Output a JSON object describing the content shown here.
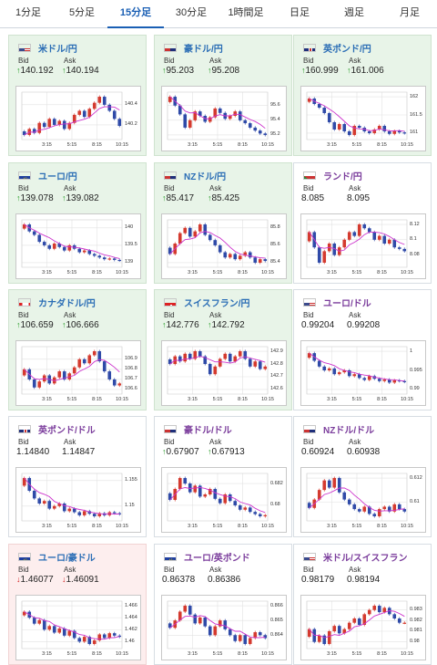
{
  "tabs": [
    {
      "label": "1分足",
      "active": false
    },
    {
      "label": "5分足",
      "active": false
    },
    {
      "label": "15分足",
      "active": true
    },
    {
      "label": "30分足",
      "active": false
    },
    {
      "label": "1時間足",
      "active": false
    },
    {
      "label": "日足",
      "active": false
    },
    {
      "label": "週足",
      "active": false
    },
    {
      "label": "月足",
      "active": false
    }
  ],
  "bid_label": "Bid",
  "ask_label": "Ask",
  "colors": {
    "up": "#239a23",
    "down": "#d32020",
    "ma": "#cc33cc",
    "tab_active": "#1a5fb4"
  },
  "cards": [
    {
      "pair": "米ドル/円",
      "flag": "us",
      "bg": "green",
      "dir": "up",
      "bid": "140.192",
      "ask": "140.194",
      "ticks": [
        "140.4",
        "140.2"
      ],
      "xlabels": [
        "3:15",
        "5:15",
        "8:15",
        "10:15"
      ],
      "close": [
        140.1,
        140.16,
        140.12,
        140.22,
        140.18,
        140.26,
        140.2,
        140.24,
        140.16,
        140.22,
        140.3,
        140.34,
        140.28,
        140.36,
        140.42,
        140.48,
        140.4,
        140.34,
        140.26,
        140.19
      ]
    },
    {
      "pair": "豪ドル/円",
      "flag": "au",
      "bg": "green",
      "dir": "up",
      "bid": "95.203",
      "ask": "95.208",
      "ticks": [
        "95.6",
        "95.4",
        "95.2"
      ],
      "xlabels": [
        "3:15",
        "5:15",
        "8:15",
        "10:15"
      ],
      "close": [
        95.72,
        95.6,
        95.48,
        95.3,
        95.4,
        95.52,
        95.46,
        95.38,
        95.44,
        95.56,
        95.5,
        95.42,
        95.46,
        95.52,
        95.4,
        95.36,
        95.3,
        95.26,
        95.22,
        95.2
      ]
    },
    {
      "pair": "英ポンド/円",
      "flag": "uk",
      "bg": "green",
      "dir": "up",
      "bid": "160.999",
      "ask": "161.006",
      "ticks": [
        "162",
        "161.5",
        "161"
      ],
      "xlabels": [
        "3:15",
        "5:15",
        "8:15",
        "10:15"
      ],
      "close": [
        161.95,
        161.8,
        161.7,
        161.55,
        161.3,
        161.1,
        161.25,
        161.05,
        160.95,
        161.2,
        161.15,
        161.05,
        161.0,
        161.1,
        161.2,
        161.05,
        160.98,
        161.06,
        161.02,
        161.0
      ]
    },
    {
      "pair": "ユーロ/円",
      "flag": "eu",
      "bg": "green",
      "dir": "up",
      "bid": "139.078",
      "ask": "139.082",
      "ticks": [
        "140",
        "139.5",
        "139"
      ],
      "xlabels": [
        "3:15",
        "5:15",
        "8:15",
        "10:15"
      ],
      "close": [
        140.1,
        139.9,
        139.8,
        139.6,
        139.5,
        139.4,
        139.55,
        139.45,
        139.35,
        139.5,
        139.4,
        139.3,
        139.35,
        139.25,
        139.2,
        139.15,
        139.1,
        139.12,
        139.08,
        139.07
      ]
    },
    {
      "pair": "NZドル/円",
      "flag": "nz",
      "bg": "green",
      "dir": "up",
      "bid": "85.417",
      "ask": "85.425",
      "ticks": [
        "85.8",
        "85.6",
        "85.4"
      ],
      "xlabels": [
        "3:15",
        "5:15",
        "8:15",
        "10:15"
      ],
      "close": [
        85.5,
        85.62,
        85.74,
        85.8,
        85.7,
        85.76,
        85.84,
        85.72,
        85.66,
        85.6,
        85.52,
        85.46,
        85.5,
        85.44,
        85.48,
        85.52,
        85.46,
        85.4,
        85.44,
        85.42
      ]
    },
    {
      "pair": "ランド/円",
      "flag": "za",
      "bg": "white",
      "dir": "none",
      "bid": "8.085",
      "ask": "8.095",
      "ticks": [
        "8.12",
        "8.1",
        "8.08"
      ],
      "xlabels": [
        "3:15",
        "5:15",
        "8:15",
        "10:15"
      ],
      "close": [
        8.11,
        8.09,
        8.07,
        8.085,
        8.095,
        8.08,
        8.09,
        8.1,
        8.11,
        8.105,
        8.12,
        8.115,
        8.11,
        8.1,
        8.105,
        8.095,
        8.1,
        8.09,
        8.088,
        8.085
      ]
    },
    {
      "pair": "カナダドル/円",
      "flag": "ca",
      "bg": "green",
      "dir": "up",
      "bid": "106.659",
      "ask": "106.666",
      "ticks": [
        "106.9",
        "106.8",
        "106.7",
        "106.6"
      ],
      "xlabels": [
        "3:15",
        "5:15",
        "8:15",
        "10:15"
      ],
      "close": [
        106.8,
        106.7,
        106.62,
        106.68,
        106.74,
        106.66,
        106.72,
        106.78,
        106.7,
        106.76,
        106.82,
        106.9,
        106.86,
        106.94,
        106.98,
        106.88,
        106.78,
        106.7,
        106.64,
        106.66
      ]
    },
    {
      "pair": "スイスフラン/円",
      "flag": "ch",
      "bg": "green",
      "dir": "up",
      "bid": "142.776",
      "ask": "142.792",
      "ticks": [
        "142.9",
        "142.8",
        "142.7",
        "142.6"
      ],
      "xlabels": [
        "3:15",
        "5:15",
        "8:15",
        "10:15"
      ],
      "close": [
        142.8,
        142.86,
        142.82,
        142.88,
        142.84,
        142.9,
        142.86,
        142.8,
        142.72,
        142.78,
        142.84,
        142.88,
        142.82,
        142.86,
        142.9,
        142.84,
        142.78,
        142.82,
        142.76,
        142.78
      ]
    },
    {
      "pair": "ユーロ/ドル",
      "flag": "us",
      "bg": "white",
      "dir": "none",
      "bid": "0.99204",
      "ask": "0.99208",
      "ticks": [
        "1",
        "0.995",
        "0.99"
      ],
      "xlabels": [
        "3:15",
        "5:15",
        "8:15",
        "10:15"
      ],
      "close": [
        0.9995,
        0.9975,
        0.996,
        0.995,
        0.9955,
        0.994,
        0.9945,
        0.995,
        0.9935,
        0.994,
        0.993,
        0.9925,
        0.9935,
        0.9928,
        0.9922,
        0.9926,
        0.9918,
        0.9924,
        0.9922,
        0.992
      ]
    },
    {
      "pair": "英ポンド/ドル",
      "flag": "uk",
      "bg": "white",
      "dir": "none",
      "bid": "1.14840",
      "ask": "1.14847",
      "ticks": [
        "1.155",
        "1.15"
      ],
      "xlabels": [
        "3:15",
        "5:15",
        "8:15",
        "10:15"
      ],
      "close": [
        1.1555,
        1.153,
        1.1515,
        1.1505,
        1.151,
        1.1495,
        1.15,
        1.1505,
        1.149,
        1.1495,
        1.1488,
        1.1482,
        1.149,
        1.1485,
        1.148,
        1.1486,
        1.1482,
        1.1488,
        1.1486,
        1.1484
      ]
    },
    {
      "pair": "豪ドル/ドル",
      "flag": "au",
      "bg": "white",
      "dir": "up",
      "bid": "0.67907",
      "ask": "0.67913",
      "ticks": [
        "0.682",
        "0.68"
      ],
      "xlabels": [
        "3:15",
        "5:15",
        "8:15",
        "10:15"
      ],
      "close": [
        0.6805,
        0.6815,
        0.6825,
        0.682,
        0.6812,
        0.6818,
        0.6808,
        0.681,
        0.6815,
        0.6806,
        0.6802,
        0.681,
        0.6804,
        0.68,
        0.6796,
        0.6798,
        0.6794,
        0.6792,
        0.679,
        0.6791
      ]
    },
    {
      "pair": "NZドル/ドル",
      "flag": "nz",
      "bg": "white",
      "dir": "none",
      "bid": "0.60924",
      "ask": "0.60938",
      "ticks": [
        "0.612",
        "0.61"
      ],
      "xlabels": [
        "3:15",
        "5:15",
        "8:15",
        "10:15"
      ],
      "close": [
        0.6095,
        0.6102,
        0.611,
        0.6118,
        0.6112,
        0.612,
        0.6108,
        0.6102,
        0.6098,
        0.6094,
        0.6092,
        0.6096,
        0.609,
        0.6088,
        0.6094,
        0.6096,
        0.6092,
        0.6098,
        0.6094,
        0.6092
      ]
    },
    {
      "pair": "ユーロ/豪ドル",
      "flag": "eu",
      "bg": "pink",
      "dir": "down",
      "bid": "1.46077",
      "ask": "1.46091",
      "ticks": [
        "1.466",
        "1.464",
        "1.462",
        "1.46"
      ],
      "xlabels": [
        "3:15",
        "5:15",
        "8:15",
        "10:15"
      ],
      "close": [
        1.465,
        1.464,
        1.463,
        1.4636,
        1.462,
        1.4626,
        1.4615,
        1.4622,
        1.461,
        1.4618,
        1.4606,
        1.46,
        1.4608,
        1.4596,
        1.4602,
        1.4612,
        1.4606,
        1.4614,
        1.461,
        1.4608
      ]
    },
    {
      "pair": "ユーロ/英ポンド",
      "flag": "eu",
      "bg": "white",
      "dir": "none",
      "bid": "0.86378",
      "ask": "0.86386",
      "ticks": [
        "0.866",
        "0.865",
        "0.864"
      ],
      "xlabels": [
        "3:15",
        "5:15",
        "8:15",
        "10:15"
      ],
      "close": [
        0.8645,
        0.865,
        0.8656,
        0.866,
        0.8654,
        0.8648,
        0.8652,
        0.8646,
        0.864,
        0.8646,
        0.865,
        0.8644,
        0.864,
        0.8636,
        0.864,
        0.8634,
        0.8638,
        0.8642,
        0.864,
        0.8638
      ]
    },
    {
      "pair": "米ドル/スイスフラン",
      "flag": "us",
      "bg": "white",
      "dir": "none",
      "bid": "0.98179",
      "ask": "0.98194",
      "ticks": [
        "0.983",
        "0.982",
        "0.981",
        "0.98"
      ],
      "xlabels": [
        "3:15",
        "5:15",
        "8:15",
        "10:15"
      ],
      "close": [
        0.9812,
        0.98,
        0.9806,
        0.9798,
        0.981,
        0.9815,
        0.9808,
        0.9812,
        0.9818,
        0.9822,
        0.9816,
        0.9826,
        0.983,
        0.9834,
        0.9828,
        0.9832,
        0.9826,
        0.9822,
        0.9818,
        0.9818
      ]
    }
  ]
}
